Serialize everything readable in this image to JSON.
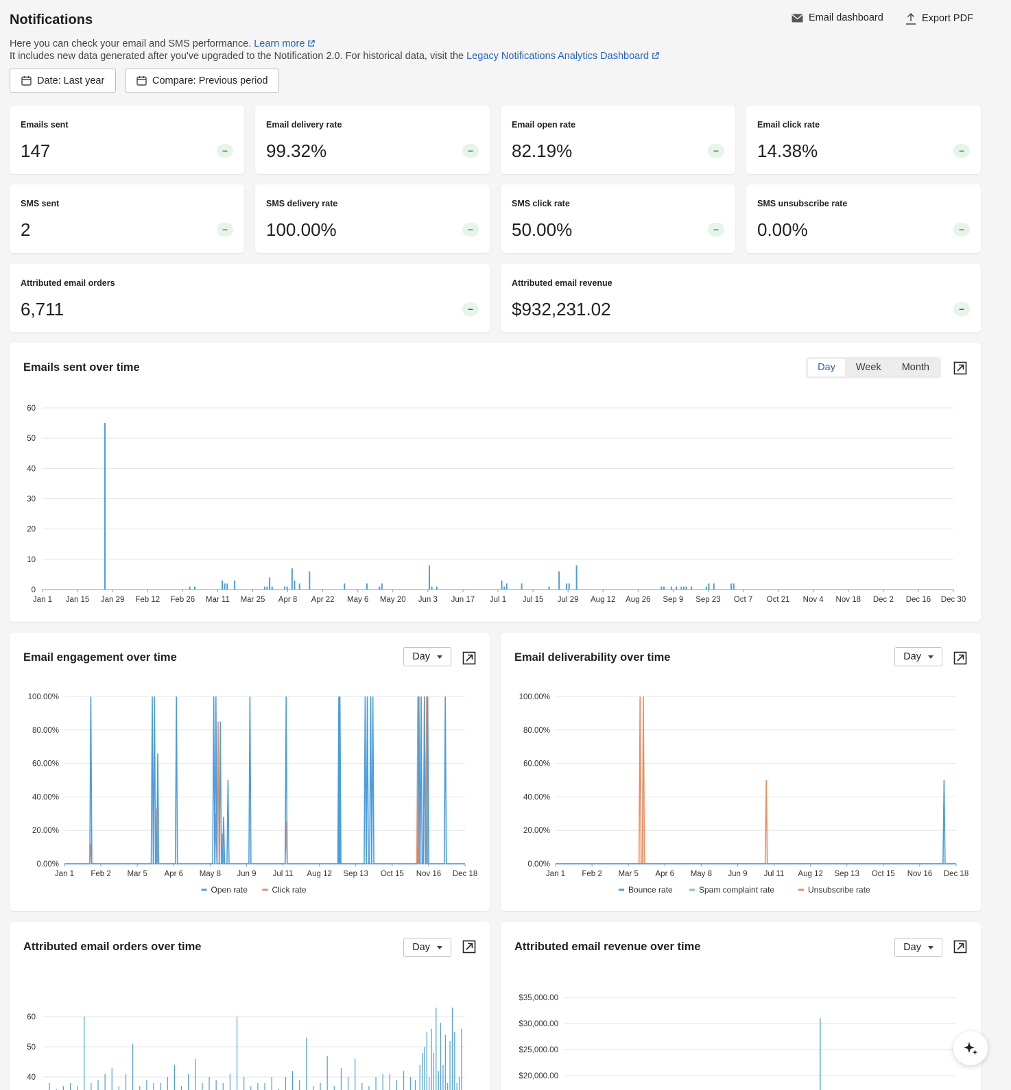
{
  "header": {
    "title": "Notifications",
    "desc1": "Here you can check your email and SMS performance.",
    "learn_more": "Learn more",
    "desc2": "It includes new data generated after you've upgraded to the Notification 2.0. For historical data, visit the",
    "legacy_link": "Legacy Notifications Analytics Dashboard",
    "email_dashboard": "Email dashboard",
    "export_pdf": "Export PDF",
    "date_filter": "Date: Last year",
    "compare_filter": "Compare: Previous period"
  },
  "kpis": {
    "emails_sent": {
      "label": "Emails sent",
      "value": "147",
      "badge": "–"
    },
    "email_delivery": {
      "label": "Email delivery rate",
      "value": "99.32%",
      "badge": "–"
    },
    "email_open": {
      "label": "Email open rate",
      "value": "82.19%",
      "badge": "–"
    },
    "email_click": {
      "label": "Email click rate",
      "value": "14.38%",
      "badge": "–"
    },
    "sms_sent": {
      "label": "SMS sent",
      "value": "2",
      "badge": "–"
    },
    "sms_delivery": {
      "label": "SMS delivery rate",
      "value": "100.00%",
      "badge": "–"
    },
    "sms_click": {
      "label": "SMS click rate",
      "value": "50.00%",
      "badge": "–"
    },
    "sms_unsub": {
      "label": "SMS unsubscribe rate",
      "value": "0.00%",
      "badge": "–"
    },
    "attr_orders": {
      "label": "Attributed email orders",
      "value": "6,711",
      "badge": "–"
    },
    "attr_revenue": {
      "label": "Attributed email revenue",
      "value": "$932,231.02",
      "badge": "–"
    }
  },
  "colors": {
    "blue": "#4a9ee0",
    "orange": "#f08a5d",
    "green": "#7fcf9b",
    "accent": "#2f5fb3"
  },
  "controls": {
    "granularity": [
      "Day",
      "Week",
      "Month"
    ],
    "active_granularity": "Day",
    "dropdown_value": "Day"
  },
  "chart_data": [
    {
      "id": "emails",
      "type": "bar",
      "title": "Emails sent over time",
      "xticks": [
        "Jan 1",
        "Jan 15",
        "Jan 29",
        "Feb 12",
        "Feb 26",
        "Mar 11",
        "Mar 25",
        "Apr 8",
        "Apr 22",
        "May 6",
        "May 20",
        "Jun 3",
        "Jun 17",
        "Jul 1",
        "Jul 15",
        "Jul 29",
        "Aug 12",
        "Aug 26",
        "Sep 9",
        "Sep 23",
        "Oct 7",
        "Oct 21",
        "Nov 4",
        "Nov 18",
        "Dec 2",
        "Dec 16",
        "Dec 30"
      ],
      "yticks": [
        "0",
        "10",
        "20",
        "30",
        "40",
        "50",
        "60"
      ],
      "ylim": [
        0,
        60
      ],
      "x": [
        25,
        59,
        61,
        72,
        73,
        74,
        77,
        89,
        90,
        91,
        92,
        97,
        98,
        100,
        101,
        103,
        107,
        121,
        130,
        135,
        136,
        155,
        156,
        158,
        184,
        185,
        186,
        192,
        203,
        207,
        210,
        211,
        214,
        248,
        249,
        252,
        254,
        256,
        257,
        258,
        260,
        266,
        267,
        269,
        276,
        277
      ],
      "values": [
        55,
        1,
        1,
        3,
        2,
        2,
        3,
        1,
        1,
        4,
        1,
        1,
        1,
        7,
        3,
        2,
        6,
        2,
        2,
        1,
        2,
        8,
        1,
        1,
        3,
        1,
        2,
        2,
        1,
        6,
        2,
        2,
        8,
        1,
        1,
        1,
        1,
        1,
        1,
        1,
        1,
        1,
        2,
        2,
        2,
        2
      ]
    },
    {
      "id": "engagement",
      "type": "line",
      "title": "Email engagement over time",
      "xticks": [
        "Jan 1",
        "Feb 2",
        "Mar 5",
        "Apr 6",
        "May 8",
        "Jun 9",
        "Jul 11",
        "Aug 12",
        "Sep 13",
        "Oct 15",
        "Nov 16",
        "Dec 18"
      ],
      "yticks": [
        "0.00%",
        "20.00%",
        "40.00%",
        "60.00%",
        "80.00%",
        "100.00%"
      ],
      "ylim": [
        0,
        100
      ],
      "legend": [
        "Open rate",
        "Click rate"
      ],
      "series": [
        {
          "name": "Open rate",
          "color": "blue",
          "spikes": [
            [
              24,
              100
            ],
            [
              80,
              100
            ],
            [
              82,
              100
            ],
            [
              85,
              66
            ],
            [
              102,
              100
            ],
            [
              136,
              100
            ],
            [
              138,
              100
            ],
            [
              142,
              85
            ],
            [
              145,
              28
            ],
            [
              149,
              50
            ],
            [
              169,
              100
            ],
            [
              202,
              100
            ],
            [
              250,
              100
            ],
            [
              251,
              100
            ],
            [
              274,
              100
            ],
            [
              276,
              100
            ],
            [
              279,
              100
            ],
            [
              281,
              100
            ],
            [
              323,
              100
            ],
            [
              325,
              100
            ],
            [
              328,
              100
            ],
            [
              331,
              100
            ],
            [
              347,
              100
            ]
          ]
        },
        {
          "name": "Click rate",
          "color": "orange",
          "spikes": [
            [
              24,
              12
            ],
            [
              84,
              33
            ],
            [
              138,
              30
            ],
            [
              140,
              85
            ],
            [
              144,
              18
            ],
            [
              202,
              25
            ],
            [
              322,
              100
            ],
            [
              325,
              100
            ],
            [
              328,
              100
            ],
            [
              330,
              100
            ]
          ]
        }
      ]
    },
    {
      "id": "deliverability",
      "type": "line",
      "title": "Email deliverability over time",
      "xticks": [
        "Jan 1",
        "Feb 2",
        "Mar 5",
        "Apr 6",
        "May 8",
        "Jun 9",
        "Jul 11",
        "Aug 12",
        "Sep 13",
        "Oct 15",
        "Nov 16",
        "Dec 18"
      ],
      "yticks": [
        "0.00%",
        "20.00%",
        "40.00%",
        "60.00%",
        "80.00%",
        "100.00%"
      ],
      "ylim": [
        0,
        100
      ],
      "legend": [
        "Bounce rate",
        "Spam complaint rate",
        "Unsubscribe rate"
      ],
      "series": [
        {
          "name": "Bounce rate",
          "color": "blue",
          "spikes": [
            [
              354,
              50
            ]
          ]
        },
        {
          "name": "Spam complaint rate",
          "color": "green",
          "spikes": []
        },
        {
          "name": "Unsubscribe rate",
          "color": "orange",
          "spikes": [
            [
              77,
              100
            ],
            [
              80,
              100
            ],
            [
              192,
              50
            ]
          ]
        }
      ]
    },
    {
      "id": "orders",
      "type": "bar",
      "title": "Attributed email orders over time",
      "xticks": [],
      "yticks": [
        "40",
        "50",
        "60"
      ],
      "ylim": [
        30,
        65
      ],
      "values": [
        [
          6,
          38
        ],
        [
          12,
          36
        ],
        [
          18,
          37
        ],
        [
          24,
          38
        ],
        [
          30,
          37
        ],
        [
          36,
          60
        ],
        [
          42,
          38
        ],
        [
          48,
          39
        ],
        [
          54,
          41
        ],
        [
          60,
          43
        ],
        [
          66,
          37
        ],
        [
          72,
          41
        ],
        [
          78,
          51
        ],
        [
          84,
          37
        ],
        [
          90,
          39
        ],
        [
          96,
          38
        ],
        [
          102,
          38
        ],
        [
          108,
          40
        ],
        [
          114,
          44
        ],
        [
          120,
          37
        ],
        [
          126,
          41
        ],
        [
          132,
          46
        ],
        [
          138,
          38
        ],
        [
          144,
          40
        ],
        [
          150,
          39
        ],
        [
          156,
          38
        ],
        [
          162,
          41
        ],
        [
          168,
          60
        ],
        [
          174,
          40
        ],
        [
          180,
          37
        ],
        [
          186,
          38
        ],
        [
          192,
          38
        ],
        [
          198,
          40
        ],
        [
          204,
          36
        ],
        [
          210,
          40
        ],
        [
          216,
          42
        ],
        [
          222,
          39
        ],
        [
          228,
          53
        ],
        [
          234,
          37
        ],
        [
          240,
          38
        ],
        [
          246,
          47
        ],
        [
          252,
          37
        ],
        [
          258,
          43
        ],
        [
          264,
          40
        ],
        [
          270,
          46
        ],
        [
          276,
          38
        ],
        [
          282,
          37
        ],
        [
          288,
          40
        ],
        [
          294,
          41
        ],
        [
          300,
          41
        ],
        [
          306,
          39
        ],
        [
          312,
          42
        ],
        [
          318,
          40
        ],
        [
          322,
          39
        ],
        [
          324,
          35
        ],
        [
          326,
          44
        ],
        [
          328,
          48
        ],
        [
          330,
          50
        ],
        [
          332,
          55
        ],
        [
          334,
          40
        ],
        [
          336,
          56
        ],
        [
          338,
          48
        ],
        [
          340,
          63
        ],
        [
          342,
          42
        ],
        [
          344,
          58
        ],
        [
          346,
          44
        ],
        [
          348,
          54
        ],
        [
          350,
          38
        ],
        [
          352,
          52
        ],
        [
          354,
          63
        ],
        [
          356,
          55
        ],
        [
          358,
          38
        ],
        [
          360,
          40
        ],
        [
          362,
          56
        ]
      ]
    },
    {
      "id": "revenue",
      "type": "bar",
      "title": "Attributed email revenue over time",
      "xticks": [],
      "yticks": [
        "$20,000.00",
        "$25,000.00",
        "$30,000.00",
        "$35,000.00"
      ],
      "ylim": [
        17000,
        36500
      ],
      "values": [
        [
          213,
          31000
        ]
      ]
    }
  ]
}
